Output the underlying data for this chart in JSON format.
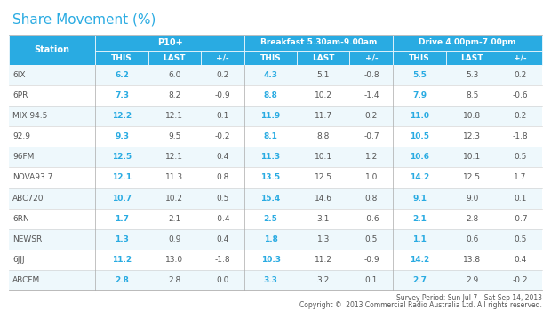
{
  "title": "Share Movement (%)",
  "title_color": "#29ABE2",
  "background_color": "#FFFFFF",
  "header_bg": "#29ABE2",
  "header_text_color": "#FFFFFF",
  "stations": [
    "6IX",
    "6PR",
    "MIX 94.5",
    "92.9",
    "96FM",
    "NOVA93.7",
    "ABC720",
    "6RN",
    "NEWSR",
    "6JJJ",
    "ABCFM"
  ],
  "p10_this": [
    6.2,
    7.3,
    12.2,
    9.3,
    12.5,
    12.1,
    10.7,
    1.7,
    1.3,
    11.2,
    2.8
  ],
  "p10_last": [
    6.0,
    8.2,
    12.1,
    9.5,
    12.1,
    11.3,
    10.2,
    2.1,
    0.9,
    13.0,
    2.8
  ],
  "p10_pm": [
    0.2,
    -0.9,
    0.1,
    -0.2,
    0.4,
    0.8,
    0.5,
    -0.4,
    0.4,
    -1.8,
    0.0
  ],
  "bfast_this": [
    4.3,
    8.8,
    11.9,
    8.1,
    11.3,
    13.5,
    15.4,
    2.5,
    1.8,
    10.3,
    3.3
  ],
  "bfast_last": [
    5.1,
    10.2,
    11.7,
    8.8,
    10.1,
    12.5,
    14.6,
    3.1,
    1.3,
    11.2,
    3.2
  ],
  "bfast_pm": [
    -0.8,
    -1.4,
    0.2,
    -0.7,
    1.2,
    1.0,
    0.8,
    -0.6,
    0.5,
    -0.9,
    0.1
  ],
  "drive_this": [
    5.5,
    7.9,
    11.0,
    10.5,
    10.6,
    14.2,
    9.1,
    2.1,
    1.1,
    14.2,
    2.7
  ],
  "drive_last": [
    5.3,
    8.5,
    10.8,
    12.3,
    10.1,
    12.5,
    9.0,
    2.8,
    0.6,
    13.8,
    2.9
  ],
  "drive_pm": [
    0.2,
    -0.6,
    0.2,
    -1.8,
    0.5,
    1.7,
    0.1,
    -0.7,
    0.5,
    0.4,
    -0.2
  ],
  "footer1": "Survey Period: Sun Jul 7 - Sat Sep 14, 2013",
  "footer2": "Copyright ©  2013 Commercial Radio Australia Ltd. All rights reserved.",
  "blue_text": "#29ABE2",
  "dark_text": "#555555"
}
